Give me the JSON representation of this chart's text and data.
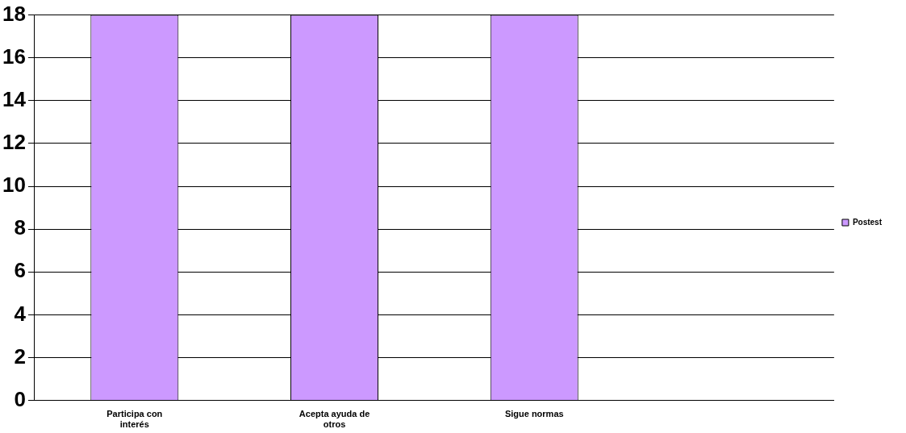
{
  "chart_data": {
    "type": "bar",
    "categories": [
      "Participa con interés",
      "Acepta ayuda de otros",
      "Sigue normas",
      null
    ],
    "series": [
      {
        "name": "Postest",
        "color": "#cc99ff",
        "values": [
          18,
          18,
          18,
          null
        ]
      }
    ],
    "ylim": [
      0,
      18
    ],
    "yticks": [
      0,
      2,
      4,
      6,
      8,
      10,
      12,
      14,
      16,
      18
    ],
    "grid": "y",
    "legend": "right"
  }
}
